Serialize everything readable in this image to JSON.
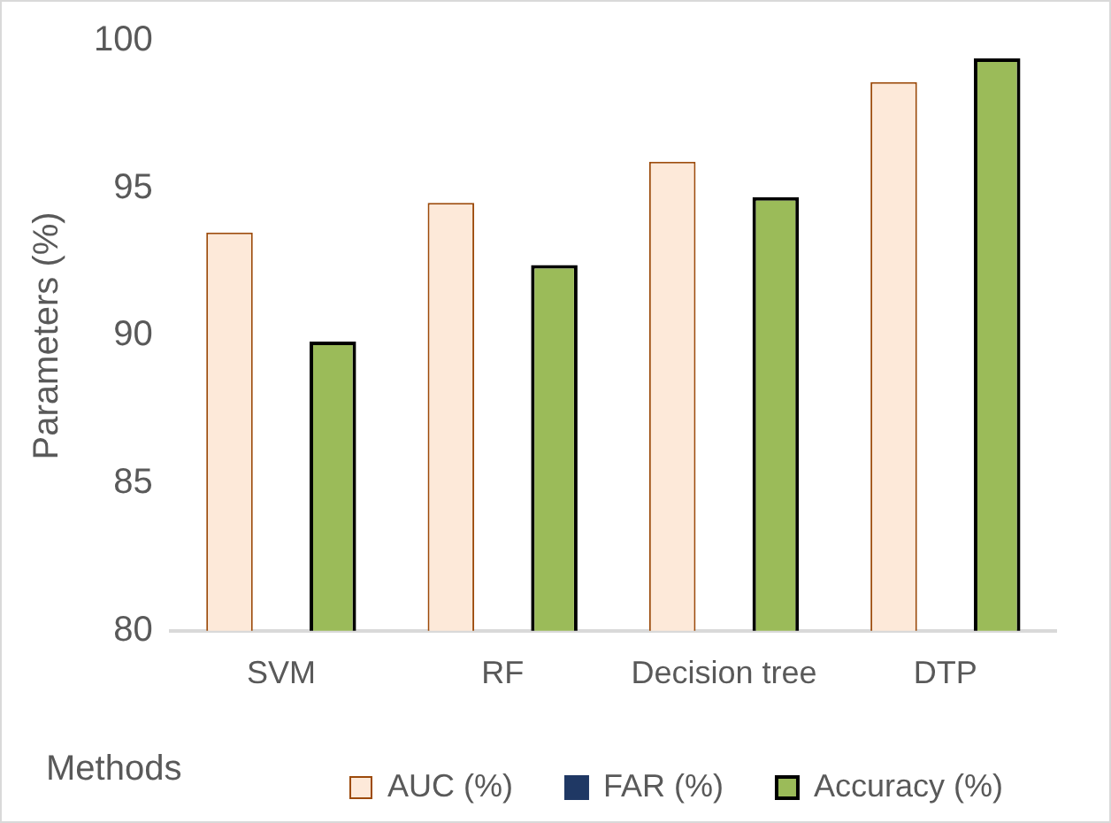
{
  "chart_data": {
    "type": "bar",
    "xlabel": "Methods",
    "ylabel": "Parameters (%)",
    "categories": [
      "SVM",
      "RF",
      "Decision tree",
      "DTP"
    ],
    "series": [
      {
        "name": "AUC (%)",
        "color": "#fde9d9",
        "values": [
          93.5,
          94.5,
          95.9,
          98.6
        ]
      },
      {
        "name": "FAR (%)",
        "color": "#1f3864",
        "values": [
          null,
          null,
          null,
          null
        ]
      },
      {
        "name": "Accuracy (%)",
        "color": "#9bbb59",
        "values": [
          89.8,
          92.4,
          94.7,
          99.4
        ]
      }
    ],
    "ylim": [
      80,
      100
    ],
    "yticks": [
      80,
      85,
      90,
      95,
      100
    ],
    "grid": false,
    "legend": "bottom"
  }
}
